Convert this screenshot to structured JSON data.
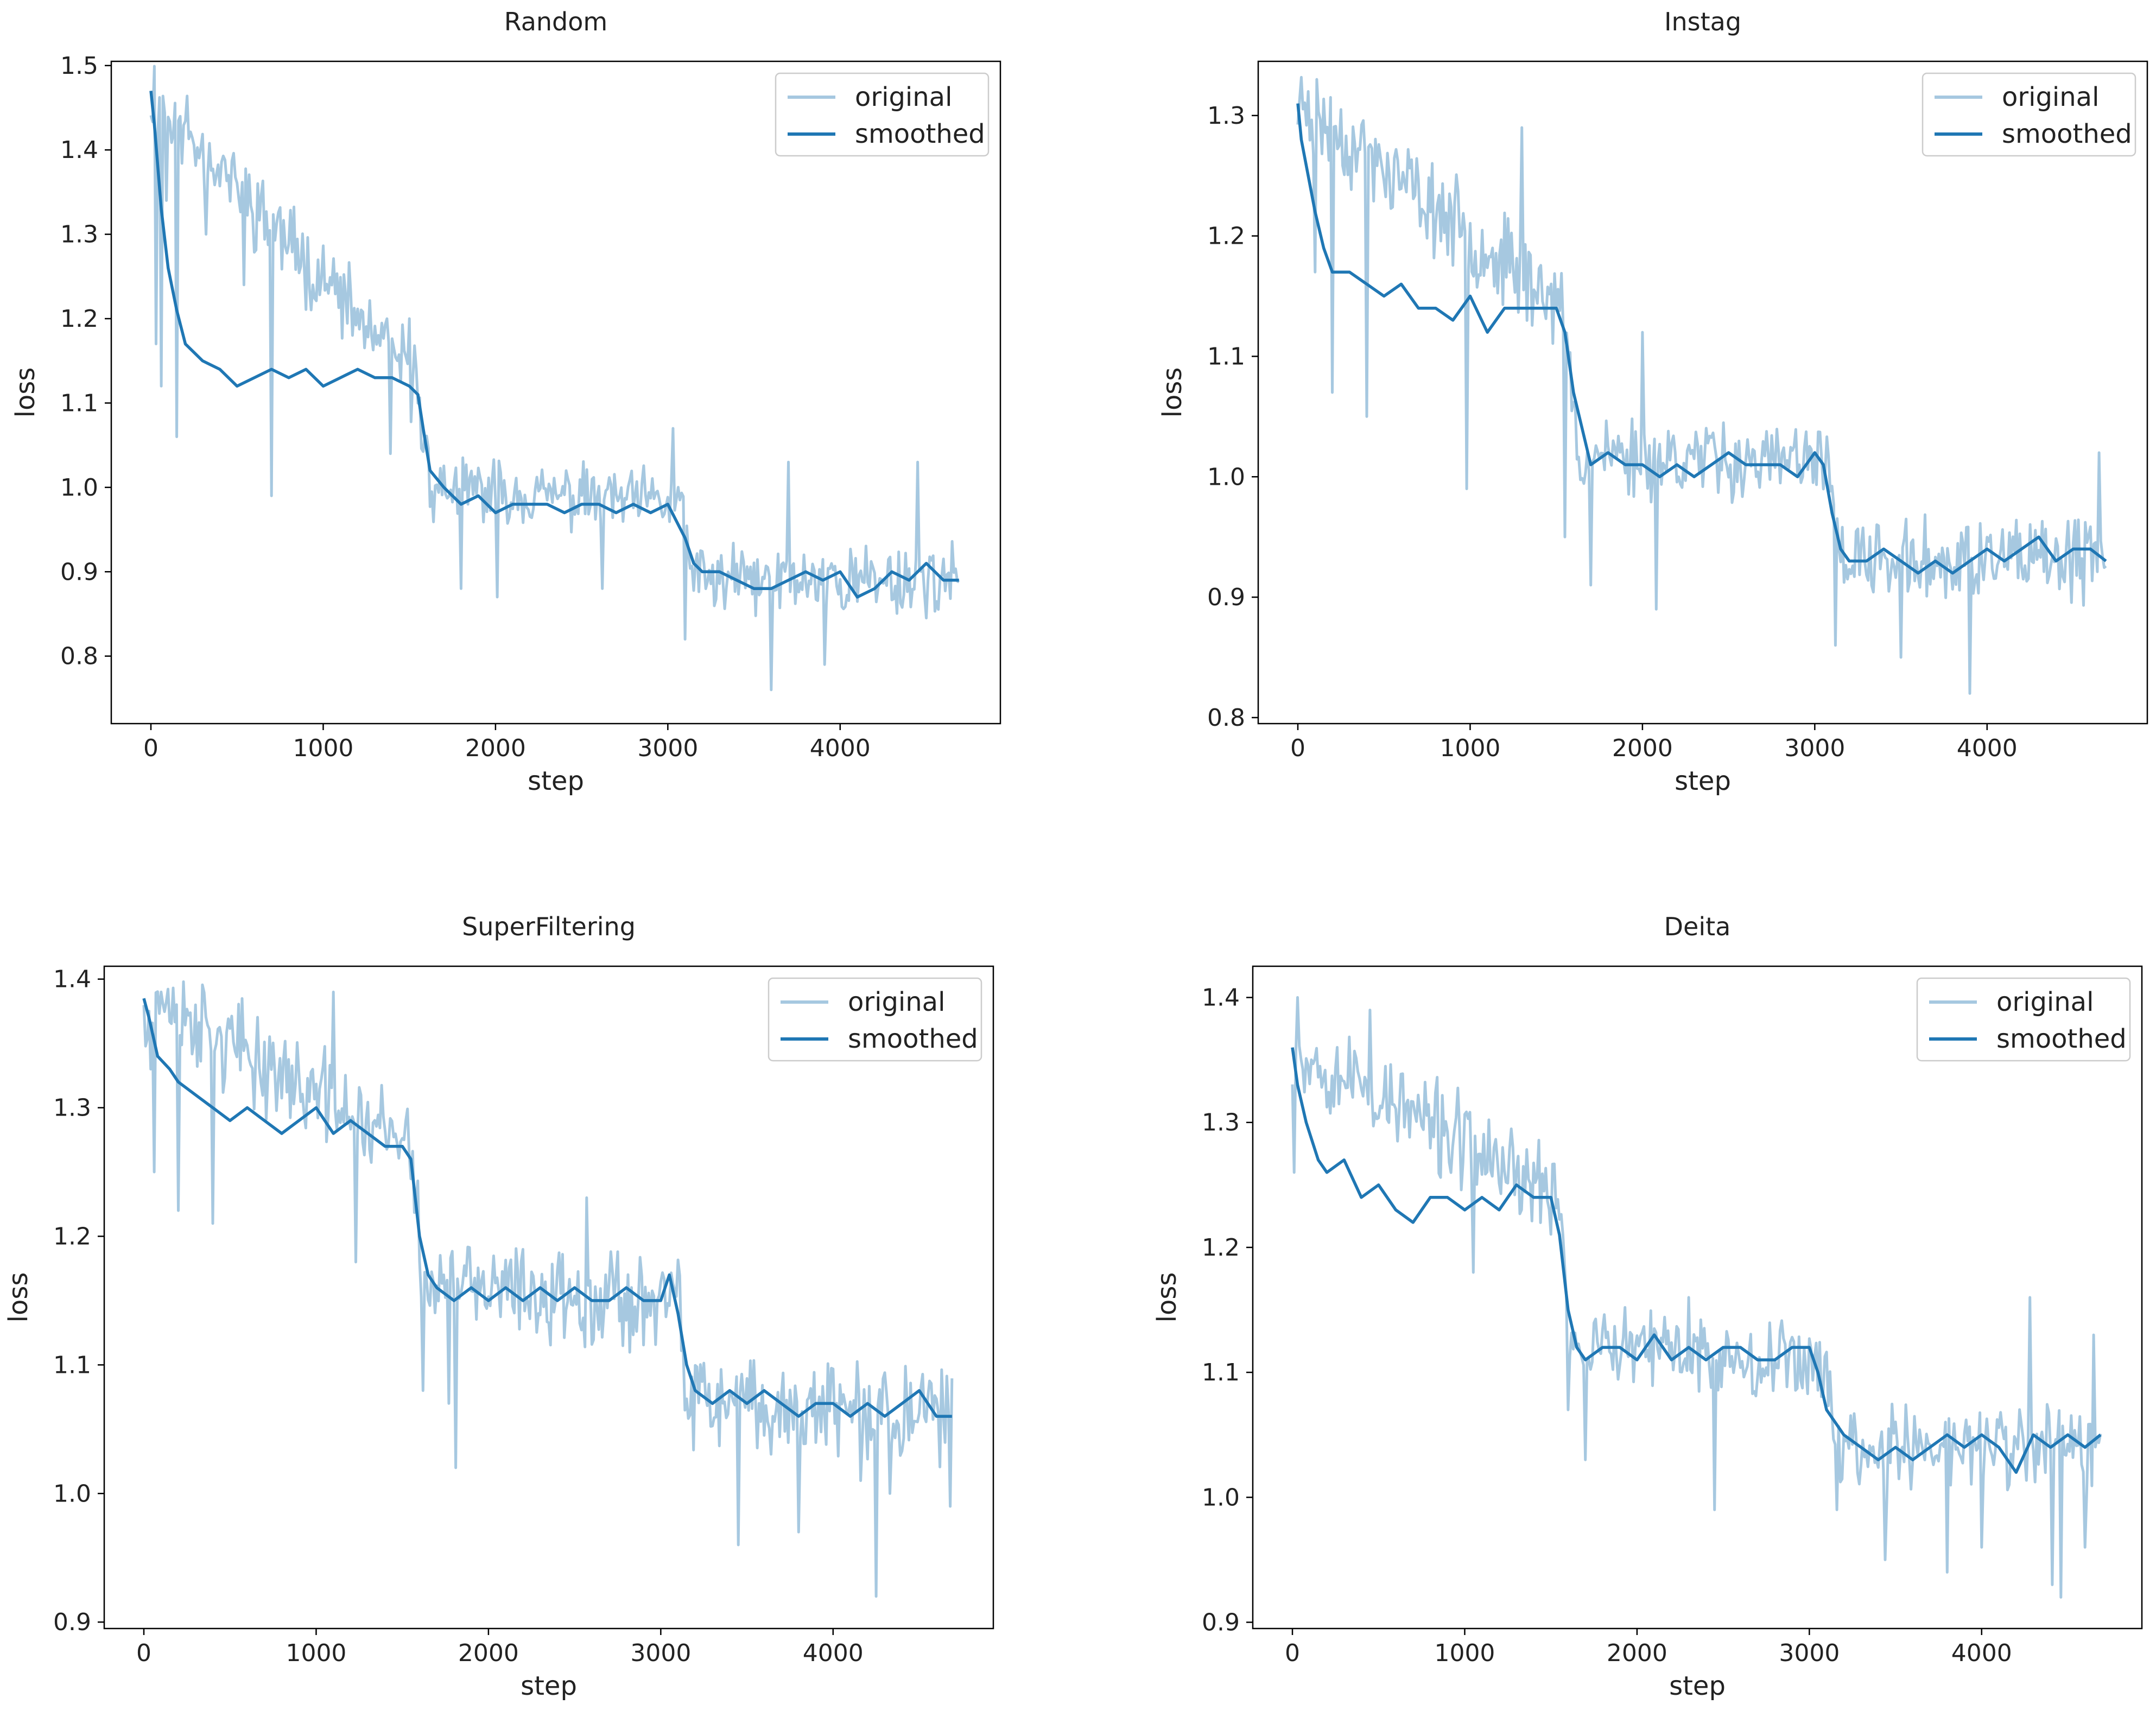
{
  "colors": {
    "original": "#a6c8e0",
    "smoothed": "#1f77b4",
    "axis": "#000000",
    "background": "#ffffff"
  },
  "chart_data": [
    {
      "type": "line",
      "title": "Random",
      "xlabel": "step",
      "ylabel": "loss",
      "xlim": [
        -230,
        4930
      ],
      "ylim": [
        0.72,
        1.505
      ],
      "xticks": [
        0,
        1000,
        2000,
        3000,
        4000
      ],
      "xtick_labels": [
        "0",
        "1000",
        "2000",
        "3000",
        "4000"
      ],
      "yticks": [
        0.8,
        0.9,
        1.0,
        1.1,
        1.2,
        1.3,
        1.4,
        1.5
      ],
      "ytick_labels": [
        "0.8",
        "0.9",
        "1.0",
        "1.1",
        "1.2",
        "1.3",
        "1.4",
        "1.5"
      ],
      "legend": {
        "position": "top-right",
        "entries": [
          "original",
          "smoothed"
        ]
      },
      "series": [
        {
          "name": "smoothed",
          "step": [
            0,
            20,
            60,
            100,
            150,
            200,
            300,
            400,
            500,
            600,
            700,
            800,
            900,
            1000,
            1100,
            1200,
            1300,
            1400,
            1500,
            1550,
            1580,
            1620,
            1700,
            1800,
            1900,
            2000,
            2100,
            2200,
            2300,
            2400,
            2500,
            2600,
            2700,
            2800,
            2900,
            3000,
            3050,
            3100,
            3150,
            3200,
            3300,
            3400,
            3500,
            3600,
            3700,
            3800,
            3900,
            4000,
            4100,
            4200,
            4300,
            4400,
            4500,
            4600,
            4690
          ],
          "values": [
            1.47,
            1.43,
            1.33,
            1.26,
            1.21,
            1.17,
            1.15,
            1.14,
            1.12,
            1.13,
            1.14,
            1.13,
            1.14,
            1.12,
            1.13,
            1.14,
            1.13,
            1.13,
            1.12,
            1.11,
            1.07,
            1.02,
            1.0,
            0.98,
            0.99,
            0.97,
            0.98,
            0.98,
            0.98,
            0.97,
            0.98,
            0.98,
            0.97,
            0.98,
            0.97,
            0.98,
            0.96,
            0.94,
            0.91,
            0.9,
            0.9,
            0.89,
            0.88,
            0.88,
            0.89,
            0.9,
            0.89,
            0.9,
            0.87,
            0.88,
            0.9,
            0.89,
            0.91,
            0.89,
            0.89
          ]
        },
        {
          "name": "original",
          "step": [
            0,
            1550,
            1620,
            3100,
            3140,
            4690
          ],
          "values": [
            1.47,
            1.12,
            1.0,
            0.98,
            0.89,
            0.89
          ],
          "noise_amplitude": [
            0.06,
            0.06,
            0.045,
            0.045,
            0.05,
            0.05
          ],
          "spikes": [
            [
              30,
              1.17
            ],
            [
              55,
              1.12
            ],
            [
              90,
              1.34
            ],
            [
              150,
              1.06
            ],
            [
              320,
              1.3
            ],
            [
              540,
              1.24
            ],
            [
              700,
              0.99
            ],
            [
              1030,
              1.23
            ],
            [
              1390,
              1.04
            ],
            [
              1500,
              1.2
            ],
            [
              1800,
              0.88
            ],
            [
              2010,
              0.87
            ],
            [
              2620,
              0.88
            ],
            [
              3030,
              1.07
            ],
            [
              3100,
              0.82
            ],
            [
              3600,
              0.76
            ],
            [
              3700,
              1.03
            ],
            [
              3910,
              0.79
            ],
            [
              4450,
              1.03
            ]
          ],
          "seed": 11
        }
      ]
    },
    {
      "type": "line",
      "title": "Instag",
      "xlabel": "step",
      "ylabel": "loss",
      "xlim": [
        -230,
        4930
      ],
      "ylim": [
        0.795,
        1.345
      ],
      "xticks": [
        0,
        1000,
        2000,
        3000,
        4000
      ],
      "xtick_labels": [
        "0",
        "1000",
        "2000",
        "3000",
        "4000"
      ],
      "yticks": [
        0.8,
        0.9,
        1.0,
        1.1,
        1.2,
        1.3
      ],
      "ytick_labels": [
        "0.8",
        "0.9",
        "1.0",
        "1.1",
        "1.2",
        "1.3"
      ],
      "legend": {
        "position": "top-right",
        "entries": [
          "original",
          "smoothed"
        ]
      },
      "series": [
        {
          "name": "smoothed",
          "step": [
            0,
            20,
            60,
            100,
            150,
            200,
            300,
            400,
            500,
            600,
            700,
            800,
            900,
            1000,
            1100,
            1200,
            1300,
            1400,
            1500,
            1550,
            1600,
            1650,
            1700,
            1800,
            1900,
            2000,
            2100,
            2200,
            2300,
            2400,
            2500,
            2600,
            2700,
            2800,
            2900,
            3000,
            3050,
            3100,
            3150,
            3200,
            3300,
            3400,
            3500,
            3600,
            3700,
            3800,
            3900,
            4000,
            4100,
            4200,
            4300,
            4400,
            4500,
            4600,
            4690
          ],
          "values": [
            1.31,
            1.28,
            1.25,
            1.22,
            1.19,
            1.17,
            1.17,
            1.16,
            1.15,
            1.16,
            1.14,
            1.14,
            1.13,
            1.15,
            1.12,
            1.14,
            1.14,
            1.14,
            1.14,
            1.12,
            1.07,
            1.04,
            1.01,
            1.02,
            1.01,
            1.01,
            1.0,
            1.01,
            1.0,
            1.01,
            1.02,
            1.01,
            1.01,
            1.01,
            1.0,
            1.02,
            1.01,
            0.97,
            0.94,
            0.93,
            0.93,
            0.94,
            0.93,
            0.92,
            0.93,
            0.92,
            0.93,
            0.94,
            0.93,
            0.94,
            0.95,
            0.93,
            0.94,
            0.94,
            0.93
          ]
        },
        {
          "name": "original",
          "step": [
            0,
            1550,
            1620,
            3100,
            3140,
            4690
          ],
          "values": [
            1.31,
            1.14,
            1.02,
            1.01,
            0.93,
            0.93
          ],
          "noise_amplitude": [
            0.045,
            0.045,
            0.04,
            0.04,
            0.04,
            0.04
          ],
          "spikes": [
            [
              60,
              1.32
            ],
            [
              100,
              1.17
            ],
            [
              200,
              1.07
            ],
            [
              400,
              1.05
            ],
            [
              980,
              0.99
            ],
            [
              1300,
              1.29
            ],
            [
              1550,
              0.95
            ],
            [
              1700,
              0.91
            ],
            [
              2080,
              0.89
            ],
            [
              2000,
              1.12
            ],
            [
              3120,
              0.86
            ],
            [
              3500,
              0.85
            ],
            [
              3900,
              0.82
            ],
            [
              4650,
              1.02
            ]
          ],
          "seed": 23
        }
      ]
    },
    {
      "type": "line",
      "title": "SuperFiltering",
      "xlabel": "step",
      "ylabel": "loss",
      "xlim": [
        -230,
        4930
      ],
      "ylim": [
        0.895,
        1.41
      ],
      "xticks": [
        0,
        1000,
        2000,
        3000,
        4000
      ],
      "xtick_labels": [
        "0",
        "1000",
        "2000",
        "3000",
        "4000"
      ],
      "yticks": [
        0.9,
        1.0,
        1.1,
        1.2,
        1.3,
        1.4
      ],
      "ytick_labels": [
        "0.9",
        "1.0",
        "1.1",
        "1.2",
        "1.3",
        "1.4"
      ],
      "legend": {
        "position": "top-right",
        "entries": [
          "original",
          "smoothed"
        ]
      },
      "series": [
        {
          "name": "smoothed",
          "step": [
            0,
            30,
            80,
            150,
            200,
            300,
            400,
            500,
            600,
            700,
            800,
            900,
            1000,
            1100,
            1200,
            1300,
            1400,
            1500,
            1550,
            1600,
            1650,
            1700,
            1800,
            1900,
            2000,
            2100,
            2200,
            2300,
            2400,
            2500,
            2600,
            2700,
            2800,
            2900,
            3000,
            3050,
            3100,
            3150,
            3200,
            3300,
            3400,
            3500,
            3600,
            3700,
            3800,
            3900,
            4000,
            4100,
            4200,
            4300,
            4400,
            4500,
            4600,
            4690
          ],
          "values": [
            1.385,
            1.37,
            1.34,
            1.33,
            1.32,
            1.31,
            1.3,
            1.29,
            1.3,
            1.29,
            1.28,
            1.29,
            1.3,
            1.28,
            1.29,
            1.28,
            1.27,
            1.27,
            1.26,
            1.2,
            1.17,
            1.16,
            1.15,
            1.16,
            1.15,
            1.16,
            1.15,
            1.16,
            1.15,
            1.16,
            1.15,
            1.15,
            1.16,
            1.15,
            1.15,
            1.17,
            1.14,
            1.1,
            1.08,
            1.07,
            1.08,
            1.07,
            1.08,
            1.07,
            1.06,
            1.07,
            1.07,
            1.06,
            1.07,
            1.06,
            1.07,
            1.08,
            1.06,
            1.06
          ]
        },
        {
          "name": "original",
          "step": [
            0,
            1550,
            1620,
            3100,
            3140,
            4690
          ],
          "values": [
            1.385,
            1.27,
            1.16,
            1.15,
            1.07,
            1.06
          ],
          "noise_amplitude": [
            0.045,
            0.045,
            0.045,
            0.045,
            0.045,
            0.045
          ],
          "spikes": [
            [
              40,
              1.33
            ],
            [
              60,
              1.25
            ],
            [
              100,
              1.39
            ],
            [
              200,
              1.22
            ],
            [
              300,
              1.38
            ],
            [
              400,
              1.21
            ],
            [
              1100,
              1.39
            ],
            [
              1230,
              1.18
            ],
            [
              1620,
              1.08
            ],
            [
              1740,
              1.17
            ],
            [
              1770,
              1.07
            ],
            [
              1810,
              1.02
            ],
            [
              2570,
              1.23
            ],
            [
              3450,
              0.96
            ],
            [
              3800,
              0.97
            ],
            [
              4160,
              1.01
            ],
            [
              4250,
              0.92
            ],
            [
              4330,
              1.0
            ],
            [
              4680,
              0.99
            ]
          ],
          "seed": 37
        }
      ]
    },
    {
      "type": "line",
      "title": "Deita",
      "xlabel": "step",
      "ylabel": "loss",
      "xlim": [
        -230,
        4930
      ],
      "ylim": [
        0.895,
        1.425
      ],
      "xticks": [
        0,
        1000,
        2000,
        3000,
        4000
      ],
      "xtick_labels": [
        "0",
        "1000",
        "2000",
        "3000",
        "4000"
      ],
      "yticks": [
        0.9,
        1.0,
        1.1,
        1.2,
        1.3,
        1.4
      ],
      "ytick_labels": [
        "0.9",
        "1.0",
        "1.1",
        "1.2",
        "1.3",
        "1.4"
      ],
      "legend": {
        "position": "top-right",
        "entries": [
          "original",
          "smoothed"
        ]
      },
      "series": [
        {
          "name": "smoothed",
          "step": [
            0,
            30,
            80,
            150,
            200,
            300,
            400,
            500,
            600,
            700,
            800,
            900,
            1000,
            1100,
            1200,
            1300,
            1400,
            1500,
            1550,
            1600,
            1650,
            1700,
            1800,
            1900,
            2000,
            2100,
            2200,
            2300,
            2400,
            2500,
            2600,
            2700,
            2800,
            2900,
            3000,
            3050,
            3100,
            3150,
            3200,
            3300,
            3400,
            3500,
            3600,
            3700,
            3800,
            3900,
            4000,
            4100,
            4200,
            4300,
            4400,
            4500,
            4600,
            4690
          ],
          "values": [
            1.36,
            1.33,
            1.3,
            1.27,
            1.26,
            1.27,
            1.24,
            1.25,
            1.23,
            1.22,
            1.24,
            1.24,
            1.23,
            1.24,
            1.23,
            1.25,
            1.24,
            1.24,
            1.21,
            1.15,
            1.12,
            1.11,
            1.12,
            1.12,
            1.11,
            1.13,
            1.11,
            1.12,
            1.11,
            1.12,
            1.12,
            1.11,
            1.11,
            1.12,
            1.12,
            1.1,
            1.07,
            1.06,
            1.05,
            1.04,
            1.03,
            1.04,
            1.03,
            1.04,
            1.05,
            1.04,
            1.05,
            1.04,
            1.02,
            1.05,
            1.04,
            1.05,
            1.04,
            1.05
          ]
        },
        {
          "name": "original",
          "step": [
            0,
            1550,
            1620,
            3100,
            3140,
            4690
          ],
          "values": [
            1.36,
            1.24,
            1.12,
            1.11,
            1.04,
            1.04
          ],
          "noise_amplitude": [
            0.045,
            0.045,
            0.04,
            0.04,
            0.045,
            0.045
          ],
          "spikes": [
            [
              10,
              1.26
            ],
            [
              30,
              1.4
            ],
            [
              450,
              1.39
            ],
            [
              1050,
              1.18
            ],
            [
              1600,
              1.07
            ],
            [
              1700,
              1.03
            ],
            [
              2300,
              1.16
            ],
            [
              2450,
              0.99
            ],
            [
              3160,
              0.99
            ],
            [
              3440,
              0.95
            ],
            [
              3800,
              0.94
            ],
            [
              4000,
              0.96
            ],
            [
              4280,
              1.16
            ],
            [
              4410,
              0.93
            ],
            [
              4460,
              0.92
            ],
            [
              4600,
              0.96
            ],
            [
              4650,
              1.13
            ]
          ],
          "seed": 53
        }
      ]
    }
  ]
}
